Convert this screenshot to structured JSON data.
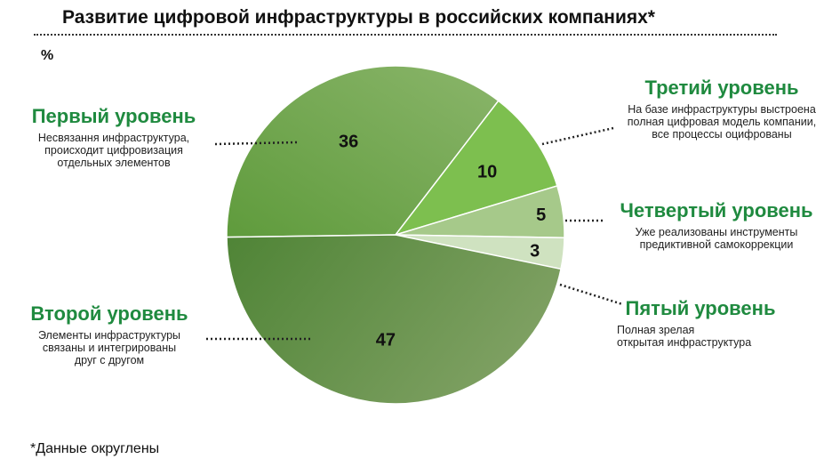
{
  "title": "Развитие цифровой инфраструктуры в российских компаниях*",
  "unit": "%",
  "footnote": "*Данные округлены",
  "levels": [
    {
      "name": "Первый уровень",
      "desc": [
        "Несвязання инфраструктура,",
        "происходит цифровизация",
        "отдельных элементов"
      ]
    },
    {
      "name": "Второй уровень",
      "desc": [
        "Элементы инфраструктуры",
        "связаны и интегрированы",
        "друг с другом"
      ]
    },
    {
      "name": "Третий уровень",
      "desc": [
        "На базе инфраструктуры выстроена",
        "полная цифровая модель компании,",
        "все процессы оцифрованы"
      ]
    },
    {
      "name": "Четвертый уровень",
      "desc": [
        "Уже реализованы инструменты",
        "предиктивной самокоррекции"
      ]
    },
    {
      "name": "Пятый уровень",
      "desc": [
        "Полная  зрелая",
        "открытая инфраструктура"
      ]
    }
  ],
  "chart_data": {
    "type": "pie",
    "title": "Развитие цифровой инфраструктуры в российских компаниях*",
    "unit": "%",
    "slices": [
      {
        "label": "Первый уровень",
        "value": 36,
        "color": "#6fa84a"
      },
      {
        "label": "Третий уровень",
        "value": 10,
        "color": "#7dbf4f"
      },
      {
        "label": "Четвертый уровень",
        "value": 5,
        "color": "#a6c98a"
      },
      {
        "label": "Пятый уровень",
        "value": 3,
        "color": "#cfe2c0"
      },
      {
        "label": "Второй уровень",
        "value": 47,
        "color": "#5e9140"
      }
    ]
  }
}
